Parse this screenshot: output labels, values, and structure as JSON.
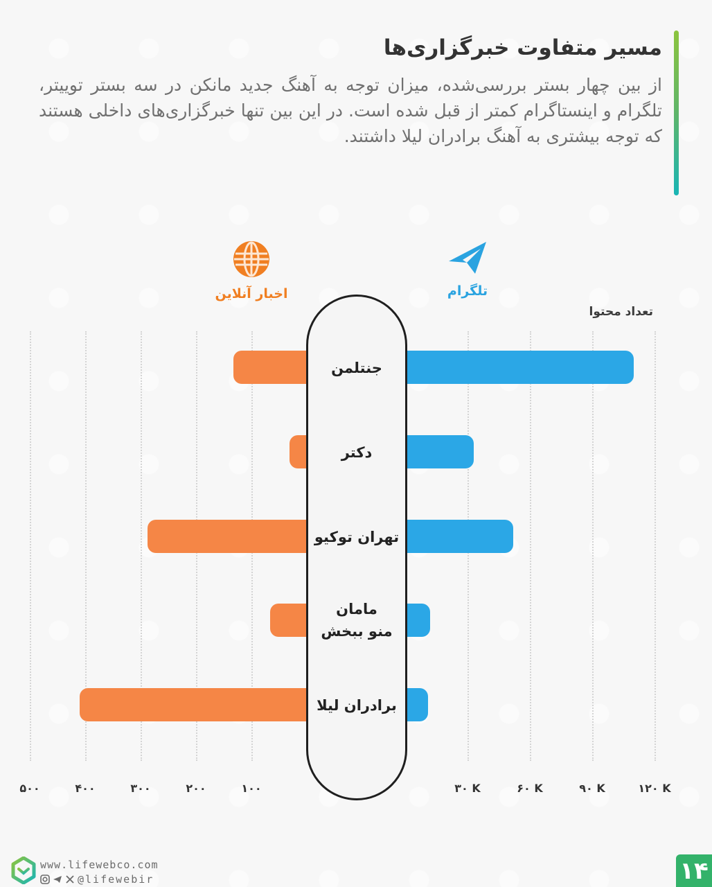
{
  "header": {
    "title": "مسیر متفاوت خبرگزاری‌ها",
    "subtitle": "از بین چهار بستر بررسی‌شده، میزان توجه به آهنگ جدید مانکن در سه بستر توییتر، تلگرام و اینستاگرام کمتر از قبل شده است. در این بین تنها خبرگزاری‌های داخلی هستند که توجه بیشتری به آهنگ برادران لیلا داشتند.",
    "accent_gradient": [
      "#8cc43e",
      "#19b5b5"
    ]
  },
  "legend": {
    "online_news": {
      "label": "اخبار آنلاین",
      "icon": "globe-icon",
      "color": "#f07f22"
    },
    "telegram": {
      "label": "تلگرام",
      "icon": "telegram-icon",
      "color": "#2aa3e0"
    }
  },
  "axis_title": "تعداد محتوا",
  "chart_data": {
    "type": "bar",
    "orientation": "horizontal-diverging",
    "title": "مسیر متفاوت خبرگزاری‌ها",
    "categories": [
      "جنتلمن",
      "دکتر",
      "تهران توکیو",
      "مامان منو ببخش",
      "برادران لیلا"
    ],
    "series": [
      {
        "name": "اخبار آنلاین",
        "side": "left",
        "color": "#f58646",
        "values": [
          132,
          31,
          287,
          66,
          410
        ]
      },
      {
        "name": "تلگرام",
        "side": "right",
        "color": "#2ba7e6",
        "values": [
          110000,
          33000,
          52000,
          12000,
          11000
        ]
      }
    ],
    "xlabel": "تعداد محتوا",
    "left_axis": {
      "ticks": [
        "۵۰۰",
        "۴۰۰",
        "۳۰۰",
        "۲۰۰",
        "۱۰۰"
      ],
      "tick_values": [
        500,
        400,
        300,
        200,
        100
      ],
      "range": [
        0,
        500
      ]
    },
    "right_axis": {
      "ticks": [
        "۳۰ K",
        "۶۰ K",
        "۹۰ K",
        "۱۲۰ K"
      ],
      "tick_values": [
        30000,
        60000,
        90000,
        120000
      ],
      "range": [
        0,
        120000
      ]
    },
    "grid": true,
    "legend_position": "top"
  },
  "category_labels": {
    "c0": "جنتلمن",
    "c1": "دکتر",
    "c2": "تهران توکیو",
    "c3_line1": "مامان",
    "c3_line2": "منو ببخش",
    "c4": "برادران لیلا"
  },
  "ticks": {
    "left": [
      "۵۰۰",
      "۴۰۰",
      "۳۰۰",
      "۲۰۰",
      "۱۰۰"
    ],
    "right": [
      "۳۰ K",
      "۶۰ K",
      "۹۰ K",
      "۱۲۰ K"
    ]
  },
  "footer": {
    "website": "www.lifewebco.com",
    "handle": "@lifewebir",
    "page_number": "۱۴"
  }
}
